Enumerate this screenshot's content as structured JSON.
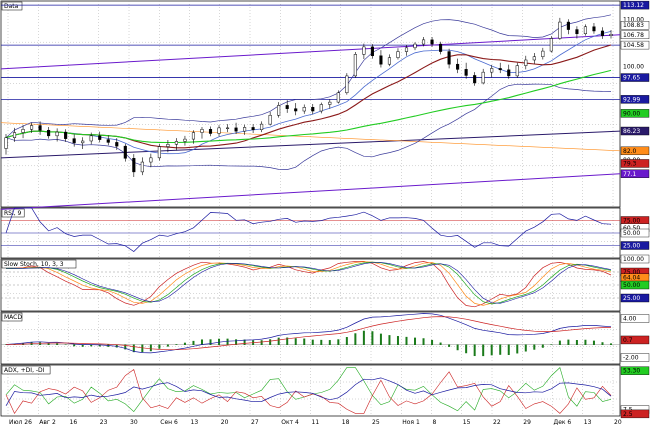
{
  "chart_data": {
    "type": "candlestick",
    "x_labels": [
      "Июл 26",
      "Авг 2",
      "16",
      "23",
      "30",
      "Сен 6",
      "13",
      "20",
      "27",
      "Окт 4",
      "11",
      "18",
      "25",
      "Ноя 1",
      "8",
      "15",
      "22",
      "29",
      "Дек 6",
      "13",
      "20"
    ],
    "panels": [
      {
        "name": "Data",
        "ylim": [
          70,
          114
        ],
        "y_ticks": [
          "110.00",
          "100.00",
          "90.00",
          "80.00"
        ],
        "price_tags": [
          {
            "text": "113.12",
            "color": "#ffffff",
            "bg": "#1a1aa0"
          },
          {
            "text": "108.83",
            "color": "#000000",
            "bg": "#ffffff"
          },
          {
            "text": "106.78",
            "color": "#000000",
            "bg": "#ffffff"
          },
          {
            "text": "104.58",
            "color": "#000000",
            "bg": "#ffffff"
          },
          {
            "text": "97.65",
            "color": "#ffffff",
            "bg": "#1a1aa0"
          },
          {
            "text": "92.99",
            "color": "#ffffff",
            "bg": "#1a1aa0"
          },
          {
            "text": "90.00",
            "color": "#000000",
            "bg": "#22cc22"
          },
          {
            "text": "86.23",
            "color": "#ffffff",
            "bg": "#2a1a6a"
          },
          {
            "text": "82.0",
            "color": "#000000",
            "bg": "#ff8c1a"
          },
          {
            "text": "79.3",
            "color": "#000000",
            "bg": "#cc2222"
          },
          {
            "text": "77.1",
            "color": "#ffffff",
            "bg": "#6a1acc"
          }
        ],
        "candles": [
          [
            82.5,
            85.6,
            81.2,
            84.8
          ],
          [
            84.8,
            86.9,
            83.9,
            85.9
          ],
          [
            85.9,
            87.5,
            84.7,
            86.6
          ],
          [
            86.6,
            88.0,
            85.8,
            87.4
          ],
          [
            87.4,
            88.3,
            85.4,
            86.4
          ],
          [
            86.4,
            87.1,
            84.6,
            85.2
          ],
          [
            85.2,
            86.8,
            84.0,
            86.0
          ],
          [
            86.0,
            86.6,
            83.9,
            84.6
          ],
          [
            84.6,
            85.5,
            82.9,
            83.7
          ],
          [
            83.7,
            84.9,
            82.4,
            84.1
          ],
          [
            84.1,
            85.9,
            83.4,
            85.2
          ],
          [
            85.2,
            86.1,
            83.8,
            84.4
          ],
          [
            84.4,
            85.3,
            83.2,
            83.8
          ],
          [
            83.8,
            84.7,
            82.2,
            83.0
          ],
          [
            83.0,
            83.5,
            79.7,
            80.4
          ],
          [
            80.4,
            81.3,
            76.4,
            77.5
          ],
          [
            77.5,
            80.6,
            76.8,
            79.6
          ],
          [
            79.6,
            81.4,
            78.5,
            80.5
          ],
          [
            80.5,
            83.5,
            79.9,
            82.9
          ],
          [
            82.9,
            84.3,
            81.7,
            83.4
          ],
          [
            83.4,
            84.7,
            82.1,
            84.0
          ],
          [
            84.0,
            85.2,
            83.1,
            84.5
          ],
          [
            84.5,
            86.4,
            83.5,
            85.9
          ],
          [
            85.9,
            87.1,
            84.6,
            86.6
          ],
          [
            86.6,
            87.2,
            85.1,
            85.7
          ],
          [
            85.7,
            87.5,
            85.1,
            86.9
          ],
          [
            86.9,
            87.7,
            86.0,
            86.9
          ],
          [
            86.9,
            88.0,
            85.6,
            86.2
          ],
          [
            86.2,
            87.6,
            85.4,
            87.0
          ],
          [
            87.0,
            87.7,
            85.8,
            86.5
          ],
          [
            86.5,
            88.3,
            86.0,
            87.7
          ],
          [
            87.7,
            90.3,
            87.4,
            89.6
          ],
          [
            89.6,
            92.4,
            89.1,
            91.7
          ],
          [
            91.7,
            92.8,
            90.1,
            91.0
          ],
          [
            91.0,
            92.2,
            89.6,
            90.5
          ],
          [
            90.5,
            91.9,
            89.9,
            91.3
          ],
          [
            91.3,
            92.0,
            89.8,
            90.5
          ],
          [
            90.5,
            92.3,
            90.0,
            91.9
          ],
          [
            91.9,
            93.0,
            91.0,
            92.4
          ],
          [
            92.4,
            94.9,
            92.1,
            94.4
          ],
          [
            94.4,
            98.6,
            94.0,
            98.0
          ],
          [
            98.0,
            103.1,
            97.6,
            102.6
          ],
          [
            102.6,
            104.9,
            101.6,
            104.2
          ],
          [
            104.2,
            104.8,
            101.7,
            102.3
          ],
          [
            102.3,
            103.5,
            99.8,
            100.5
          ],
          [
            100.5,
            102.6,
            100.1,
            101.9
          ],
          [
            101.9,
            103.9,
            101.5,
            103.2
          ],
          [
            103.2,
            104.6,
            102.3,
            104.0
          ],
          [
            104.0,
            105.2,
            103.5,
            104.8
          ],
          [
            104.8,
            106.3,
            104.3,
            105.7
          ],
          [
            105.7,
            106.3,
            104.2,
            104.8
          ],
          [
            104.8,
            105.3,
            102.6,
            103.2
          ],
          [
            103.2,
            103.8,
            99.6,
            100.5
          ],
          [
            100.5,
            101.7,
            98.6,
            99.4
          ],
          [
            99.4,
            100.8,
            97.4,
            98.1
          ],
          [
            98.1,
            98.8,
            95.9,
            96.5
          ],
          [
            96.5,
            99.5,
            96.2,
            98.8
          ],
          [
            98.8,
            100.3,
            97.7,
            99.6
          ],
          [
            99.6,
            100.8,
            98.6,
            99.3
          ],
          [
            99.3,
            100.4,
            97.4,
            98.0
          ],
          [
            98.0,
            100.8,
            97.6,
            100.2
          ],
          [
            100.2,
            102.3,
            99.4,
            101.4
          ],
          [
            101.4,
            102.9,
            100.6,
            102.1
          ],
          [
            102.1,
            104.0,
            101.5,
            103.3
          ],
          [
            103.3,
            106.5,
            103.0,
            106.0
          ],
          [
            106.0,
            110.4,
            105.7,
            109.5
          ],
          [
            109.5,
            110.1,
            106.9,
            107.9
          ],
          [
            107.9,
            108.6,
            106.0,
            107.0
          ],
          [
            107.0,
            109.0,
            106.6,
            108.5
          ],
          [
            108.5,
            109.3,
            107.0,
            107.6
          ],
          [
            107.6,
            108.4,
            105.9,
            106.6
          ],
          [
            106.6,
            107.8,
            106.0,
            106.9
          ]
        ]
      },
      {
        "name": "RSI, 9",
        "ylim": [
          0,
          100
        ],
        "y_ticks": [],
        "price_tags": [
          {
            "text": "75.00",
            "color": "#000000",
            "bg": "#cc2222"
          },
          {
            "text": "60.50",
            "color": "#000000",
            "bg": "#ffffff"
          },
          {
            "text": "50.00",
            "color": "#000000",
            "bg": "#ffffff"
          },
          {
            "text": "25.00",
            "color": "#ffffff",
            "bg": "#1a1aa0"
          }
        ]
      },
      {
        "name": "Slow Stoch, 10, 3, 3",
        "ylim": [
          0,
          100
        ],
        "y_ticks": [],
        "price_tags": [
          {
            "text": "100.00",
            "color": "#000000",
            "bg": "#ffffff"
          },
          {
            "text": "75.00",
            "color": "#000000",
            "bg": "#cc2222"
          },
          {
            "text": "64.04",
            "color": "#000000",
            "bg": "#ff8c1a"
          },
          {
            "text": "50.00",
            "color": "#000000",
            "bg": "#22cc22"
          },
          {
            "text": "25.00",
            "color": "#ffffff",
            "bg": "#1a1aa0"
          }
        ]
      },
      {
        "name": "MACD",
        "ylim": [
          -3,
          5
        ],
        "y_ticks": [],
        "price_tags": [
          {
            "text": "4.00",
            "color": "#000000",
            "bg": "#ffffff"
          },
          {
            "text": "0.7",
            "color": "#000000",
            "bg": "#cc2222"
          },
          {
            "text": "-2.00",
            "color": "#000000",
            "bg": "#ffffff"
          }
        ]
      },
      {
        "name": "ADX, +DI, -DI",
        "ylim": [
          0,
          60
        ],
        "y_ticks": [],
        "price_tags": [
          {
            "text": "53.30",
            "color": "#000000",
            "bg": "#22cc22"
          },
          {
            "text": "7.5",
            "color": "#000000",
            "bg": "#ffffff"
          },
          {
            "text": "2.5",
            "color": "#000000",
            "bg": "#cc2222"
          }
        ]
      }
    ]
  }
}
